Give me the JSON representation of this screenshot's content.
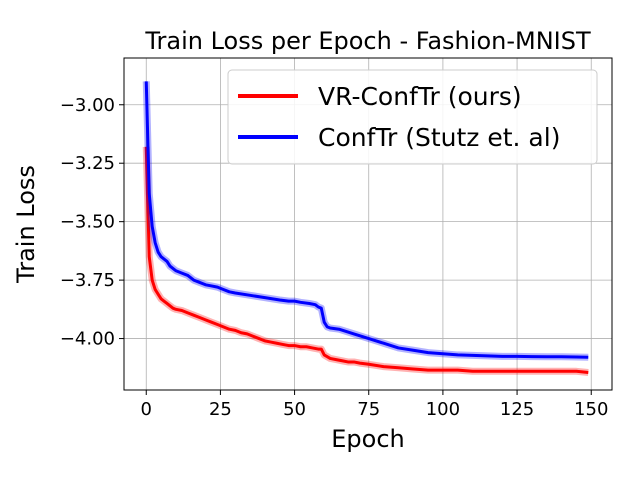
{
  "chart_data": {
    "type": "line",
    "title": "Train Loss per Epoch - Fashion-MNIST",
    "xlabel": "Epoch",
    "ylabel": "Train Loss",
    "xlim": [
      -7.5,
      157
    ],
    "ylim": [
      -4.22,
      -2.8
    ],
    "x_ticks": [
      0,
      25,
      50,
      75,
      100,
      125,
      150
    ],
    "y_ticks": [
      -3.0,
      -3.25,
      -3.5,
      -3.75,
      -4.0
    ],
    "x_tick_labels": [
      "0",
      "25",
      "50",
      "75",
      "100",
      "125",
      "150"
    ],
    "y_tick_labels": [
      "−3.00",
      "−3.25",
      "−3.50",
      "−3.75",
      "−4.00"
    ],
    "grid": true,
    "legend_position": "top-right",
    "series": [
      {
        "name": "VR-ConfTr (ours)",
        "color": "#ff0000",
        "x": [
          0,
          1,
          2,
          3,
          4,
          5,
          6,
          7,
          8,
          9,
          10,
          12,
          14,
          16,
          18,
          20,
          22,
          24,
          26,
          28,
          30,
          32,
          34,
          36,
          38,
          40,
          42,
          44,
          46,
          48,
          50,
          52,
          54,
          56,
          58,
          59,
          60,
          62,
          64,
          66,
          68,
          70,
          72,
          75,
          80,
          85,
          90,
          95,
          100,
          105,
          110,
          115,
          120,
          125,
          130,
          135,
          140,
          145,
          149
        ],
        "values": [
          -3.18,
          -3.65,
          -3.75,
          -3.79,
          -3.81,
          -3.83,
          -3.84,
          -3.85,
          -3.86,
          -3.87,
          -3.875,
          -3.88,
          -3.89,
          -3.9,
          -3.91,
          -3.92,
          -3.93,
          -3.94,
          -3.95,
          -3.96,
          -3.965,
          -3.975,
          -3.98,
          -3.99,
          -4.0,
          -4.01,
          -4.015,
          -4.02,
          -4.025,
          -4.03,
          -4.03,
          -4.035,
          -4.035,
          -4.04,
          -4.045,
          -4.045,
          -4.07,
          -4.085,
          -4.09,
          -4.095,
          -4.1,
          -4.1,
          -4.105,
          -4.11,
          -4.12,
          -4.125,
          -4.13,
          -4.135,
          -4.135,
          -4.135,
          -4.14,
          -4.14,
          -4.14,
          -4.14,
          -4.14,
          -4.14,
          -4.14,
          -4.14,
          -4.145
        ]
      },
      {
        "name": "ConfTr (Stutz et. al)",
        "color": "#0000ff",
        "x": [
          0,
          1,
          2,
          3,
          4,
          5,
          6,
          7,
          8,
          9,
          10,
          12,
          14,
          16,
          18,
          20,
          22,
          24,
          26,
          28,
          30,
          35,
          40,
          45,
          48,
          50,
          52,
          55,
          57,
          58,
          59,
          60,
          61,
          62,
          65,
          70,
          75,
          80,
          85,
          90,
          95,
          100,
          105,
          110,
          115,
          120,
          125,
          130,
          135,
          140,
          145,
          149
        ],
        "values": [
          -2.9,
          -3.38,
          -3.52,
          -3.59,
          -3.63,
          -3.65,
          -3.66,
          -3.67,
          -3.69,
          -3.7,
          -3.71,
          -3.72,
          -3.73,
          -3.75,
          -3.76,
          -3.77,
          -3.775,
          -3.78,
          -3.79,
          -3.8,
          -3.805,
          -3.815,
          -3.825,
          -3.835,
          -3.84,
          -3.84,
          -3.845,
          -3.85,
          -3.855,
          -3.865,
          -3.87,
          -3.93,
          -3.95,
          -3.955,
          -3.96,
          -3.98,
          -4.0,
          -4.02,
          -4.04,
          -4.05,
          -4.06,
          -4.065,
          -4.07,
          -4.072,
          -4.074,
          -4.076,
          -4.076,
          -4.077,
          -4.078,
          -4.078,
          -4.079,
          -4.08
        ]
      }
    ]
  }
}
